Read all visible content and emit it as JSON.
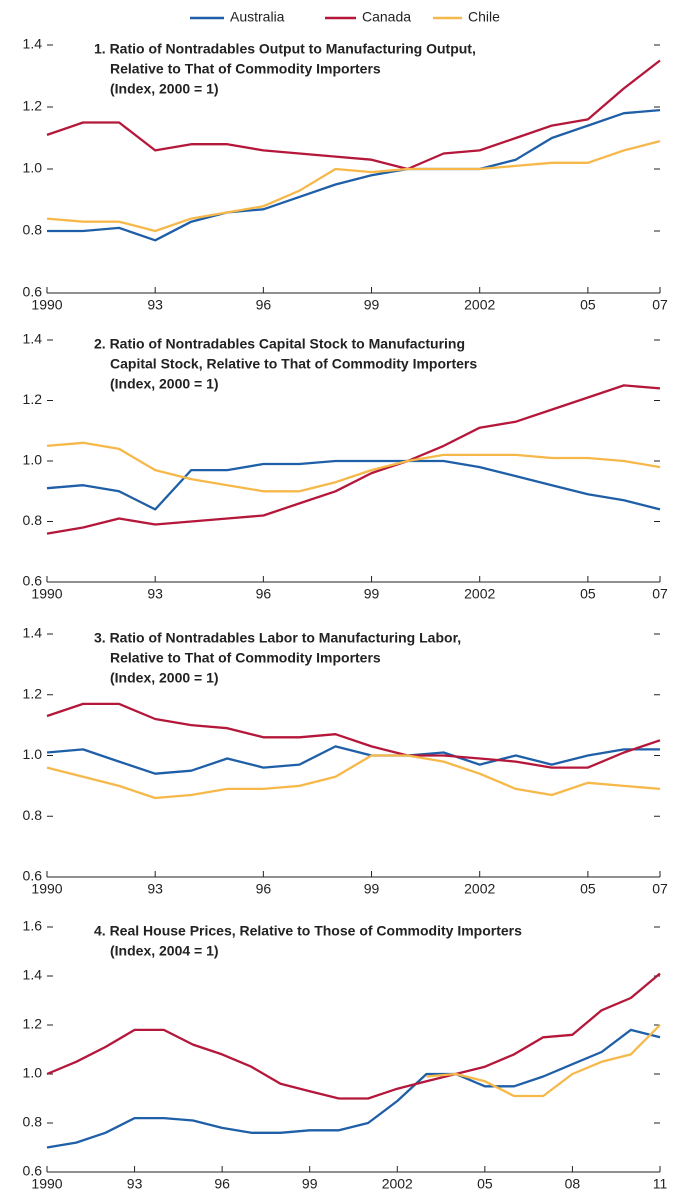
{
  "chart_data": [
    {
      "type": "line",
      "title": [
        "1. Ratio of Nontradables Output to Manufacturing Output,",
        "Relative to That of Commodity Importers",
        "(Index, 2000 = 1)"
      ],
      "x": [
        1990,
        1991,
        1992,
        1993,
        1994,
        1995,
        1996,
        1997,
        1998,
        1999,
        2000,
        2001,
        2002,
        2003,
        2004,
        2005,
        2006,
        2007
      ],
      "series": [
        {
          "name": "Australia",
          "color": "#1f5fa8",
          "values": [
            0.8,
            0.8,
            0.81,
            0.77,
            0.83,
            0.86,
            0.87,
            0.91,
            0.95,
            0.98,
            1.0,
            1.0,
            1.0,
            1.03,
            1.1,
            1.14,
            1.18,
            1.19
          ]
        },
        {
          "name": "Canada",
          "color": "#b5173a",
          "values": [
            1.11,
            1.15,
            1.15,
            1.06,
            1.08,
            1.08,
            1.06,
            1.05,
            1.04,
            1.03,
            1.0,
            1.05,
            1.06,
            1.1,
            1.14,
            1.16,
            1.26,
            1.35
          ]
        },
        {
          "name": "Chile",
          "color": "#f7b84a",
          "values": [
            0.84,
            0.83,
            0.83,
            0.8,
            0.84,
            0.86,
            0.88,
            0.93,
            1.0,
            0.99,
            1.0,
            1.0,
            1.0,
            1.01,
            1.02,
            1.02,
            1.06,
            1.09
          ]
        }
      ],
      "xlim": [
        1990,
        2007
      ],
      "xticks": [
        1990,
        {
          "value": 1993,
          "label": "93"
        },
        {
          "value": 1996,
          "label": "96"
        },
        {
          "value": 1999,
          "label": "99"
        },
        2002,
        {
          "value": 2005,
          "label": "05"
        },
        {
          "value": 2007,
          "label": "07"
        }
      ],
      "ylim": [
        0.6,
        1.4
      ],
      "yticks": [
        0.6,
        0.8,
        {
          "value": 1,
          "label": "1.0"
        },
        1.2,
        1.4
      ]
    },
    {
      "type": "line",
      "title": [
        "2. Ratio of Nontradables Capital Stock to Manufacturing",
        "Capital Stock, Relative to That of Commodity Importers",
        "(Index, 2000 = 1)"
      ],
      "x": [
        1990,
        1991,
        1992,
        1993,
        1994,
        1995,
        1996,
        1997,
        1998,
        1999,
        2000,
        2001,
        2002,
        2003,
        2004,
        2005,
        2006,
        2007
      ],
      "series": [
        {
          "name": "Australia",
          "color": "#1f5fa8",
          "values": [
            0.91,
            0.92,
            0.9,
            0.84,
            0.97,
            0.97,
            0.99,
            0.99,
            1.0,
            1.0,
            1.0,
            1.0,
            0.98,
            0.95,
            0.92,
            0.89,
            0.87,
            0.84
          ]
        },
        {
          "name": "Canada",
          "color": "#b5173a",
          "values": [
            0.76,
            0.78,
            0.81,
            0.79,
            0.8,
            0.81,
            0.82,
            0.86,
            0.9,
            0.96,
            1.0,
            1.05,
            1.11,
            1.13,
            1.17,
            1.21,
            1.25,
            1.24
          ]
        },
        {
          "name": "Chile",
          "color": "#f7b84a",
          "values": [
            1.05,
            1.06,
            1.04,
            0.97,
            0.94,
            0.92,
            0.9,
            0.9,
            0.93,
            0.97,
            1.0,
            1.02,
            1.02,
            1.02,
            1.01,
            1.01,
            1.0,
            0.98
          ]
        }
      ],
      "xlim": [
        1990,
        2007
      ],
      "xticks": [
        1990,
        {
          "value": 1993,
          "label": "93"
        },
        {
          "value": 1996,
          "label": "96"
        },
        {
          "value": 1999,
          "label": "99"
        },
        2002,
        {
          "value": 2005,
          "label": "05"
        },
        {
          "value": 2007,
          "label": "07"
        }
      ],
      "ylim": [
        0.6,
        1.4
      ],
      "yticks": [
        0.6,
        0.8,
        {
          "value": 1,
          "label": "1.0"
        },
        1.2,
        1.4
      ]
    },
    {
      "type": "line",
      "title": [
        "3. Ratio of Nontradables Labor to Manufacturing Labor,",
        "Relative to That of Commodity Importers",
        "(Index, 2000 = 1)"
      ],
      "x": [
        1990,
        1991,
        1992,
        1993,
        1994,
        1995,
        1996,
        1997,
        1998,
        1999,
        2000,
        2001,
        2002,
        2003,
        2004,
        2005,
        2006,
        2007
      ],
      "series": [
        {
          "name": "Australia",
          "color": "#1f5fa8",
          "values": [
            1.01,
            1.02,
            0.98,
            0.94,
            0.95,
            0.99,
            0.96,
            0.97,
            1.03,
            1.0,
            1.0,
            1.01,
            0.97,
            1.0,
            0.97,
            1.0,
            1.02,
            1.02
          ]
        },
        {
          "name": "Canada",
          "color": "#b5173a",
          "values": [
            1.13,
            1.17,
            1.17,
            1.12,
            1.1,
            1.09,
            1.06,
            1.06,
            1.07,
            1.03,
            1.0,
            1.0,
            0.99,
            0.98,
            0.96,
            0.96,
            1.01,
            1.05
          ]
        },
        {
          "name": "Chile",
          "color": "#f7b84a",
          "values": [
            0.96,
            0.93,
            0.9,
            0.86,
            0.87,
            0.89,
            0.89,
            0.9,
            0.93,
            1.0,
            1.0,
            0.98,
            0.94,
            0.89,
            0.87,
            0.91,
            0.9,
            0.89
          ]
        }
      ],
      "xlim": [
        1990,
        2007
      ],
      "xticks": [
        1990,
        {
          "value": 1993,
          "label": "93"
        },
        {
          "value": 1996,
          "label": "96"
        },
        {
          "value": 1999,
          "label": "99"
        },
        2002,
        {
          "value": 2005,
          "label": "05"
        },
        {
          "value": 2007,
          "label": "07"
        }
      ],
      "ylim": [
        0.6,
        1.4
      ],
      "yticks": [
        0.6,
        0.8,
        {
          "value": 1,
          "label": "1.0"
        },
        1.2,
        1.4
      ]
    },
    {
      "type": "line",
      "title": [
        "4. Real House Prices, Relative to Those of Commodity Importers",
        "(Index, 2004 = 1)"
      ],
      "x": [
        1990,
        1991,
        1992,
        1993,
        1994,
        1995,
        1996,
        1997,
        1998,
        1999,
        2000,
        2001,
        2002,
        2003,
        2004,
        2005,
        2006,
        2007,
        2008,
        2009,
        2010,
        2011
      ],
      "series": [
        {
          "name": "Australia",
          "color": "#1f5fa8",
          "values": [
            0.7,
            0.72,
            0.76,
            0.82,
            0.82,
            0.81,
            0.78,
            0.76,
            0.76,
            0.77,
            0.77,
            0.8,
            0.89,
            1.0,
            1.0,
            0.95,
            0.95,
            0.99,
            1.04,
            1.09,
            1.18,
            1.15
          ]
        },
        {
          "name": "Canada",
          "color": "#b5173a",
          "values": [
            1.0,
            1.05,
            1.11,
            1.18,
            1.18,
            1.12,
            1.08,
            1.03,
            0.96,
            0.93,
            0.9,
            0.9,
            0.94,
            0.97,
            1.0,
            1.03,
            1.08,
            1.15,
            1.16,
            1.26,
            1.31,
            1.41
          ]
        },
        {
          "name": "Chile",
          "color": "#f7b84a",
          "values": [
            null,
            null,
            null,
            null,
            null,
            null,
            null,
            null,
            null,
            null,
            null,
            null,
            null,
            0.99,
            1.0,
            0.97,
            0.91,
            0.91,
            1.0,
            1.05,
            1.08,
            1.2
          ]
        }
      ],
      "xlim": [
        1990,
        2011
      ],
      "xticks": [
        1990,
        {
          "value": 1993,
          "label": "93"
        },
        {
          "value": 1996,
          "label": "96"
        },
        {
          "value": 1999,
          "label": "99"
        },
        2002,
        {
          "value": 2005,
          "label": "05"
        },
        {
          "value": 2008,
          "label": "08"
        },
        {
          "value": 2011,
          "label": "11"
        }
      ],
      "ylim": [
        0.6,
        1.6
      ],
      "yticks": [
        0.6,
        0.8,
        {
          "value": 1,
          "label": "1.0"
        },
        1.2,
        1.4,
        1.6
      ]
    }
  ]
}
